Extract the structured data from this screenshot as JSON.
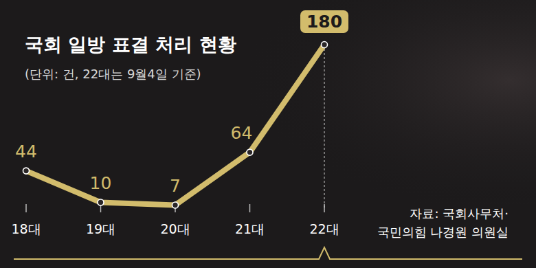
{
  "chart_data": {
    "type": "line",
    "title": "국회 일방 표결 처리 현황",
    "subtitle": "(단위: 건, 22대는 9월4일 기준)",
    "categories": [
      "18대",
      "19대",
      "20대",
      "21대",
      "22대"
    ],
    "values": [
      44,
      10,
      7,
      64,
      180
    ],
    "color": "#d2bc6c",
    "ylim": [
      0,
      180
    ],
    "tick_labels": "x",
    "data_labels": true,
    "source": [
      "자료: 국회사무처·",
      "국민의힘 나경원 의원실"
    ]
  }
}
